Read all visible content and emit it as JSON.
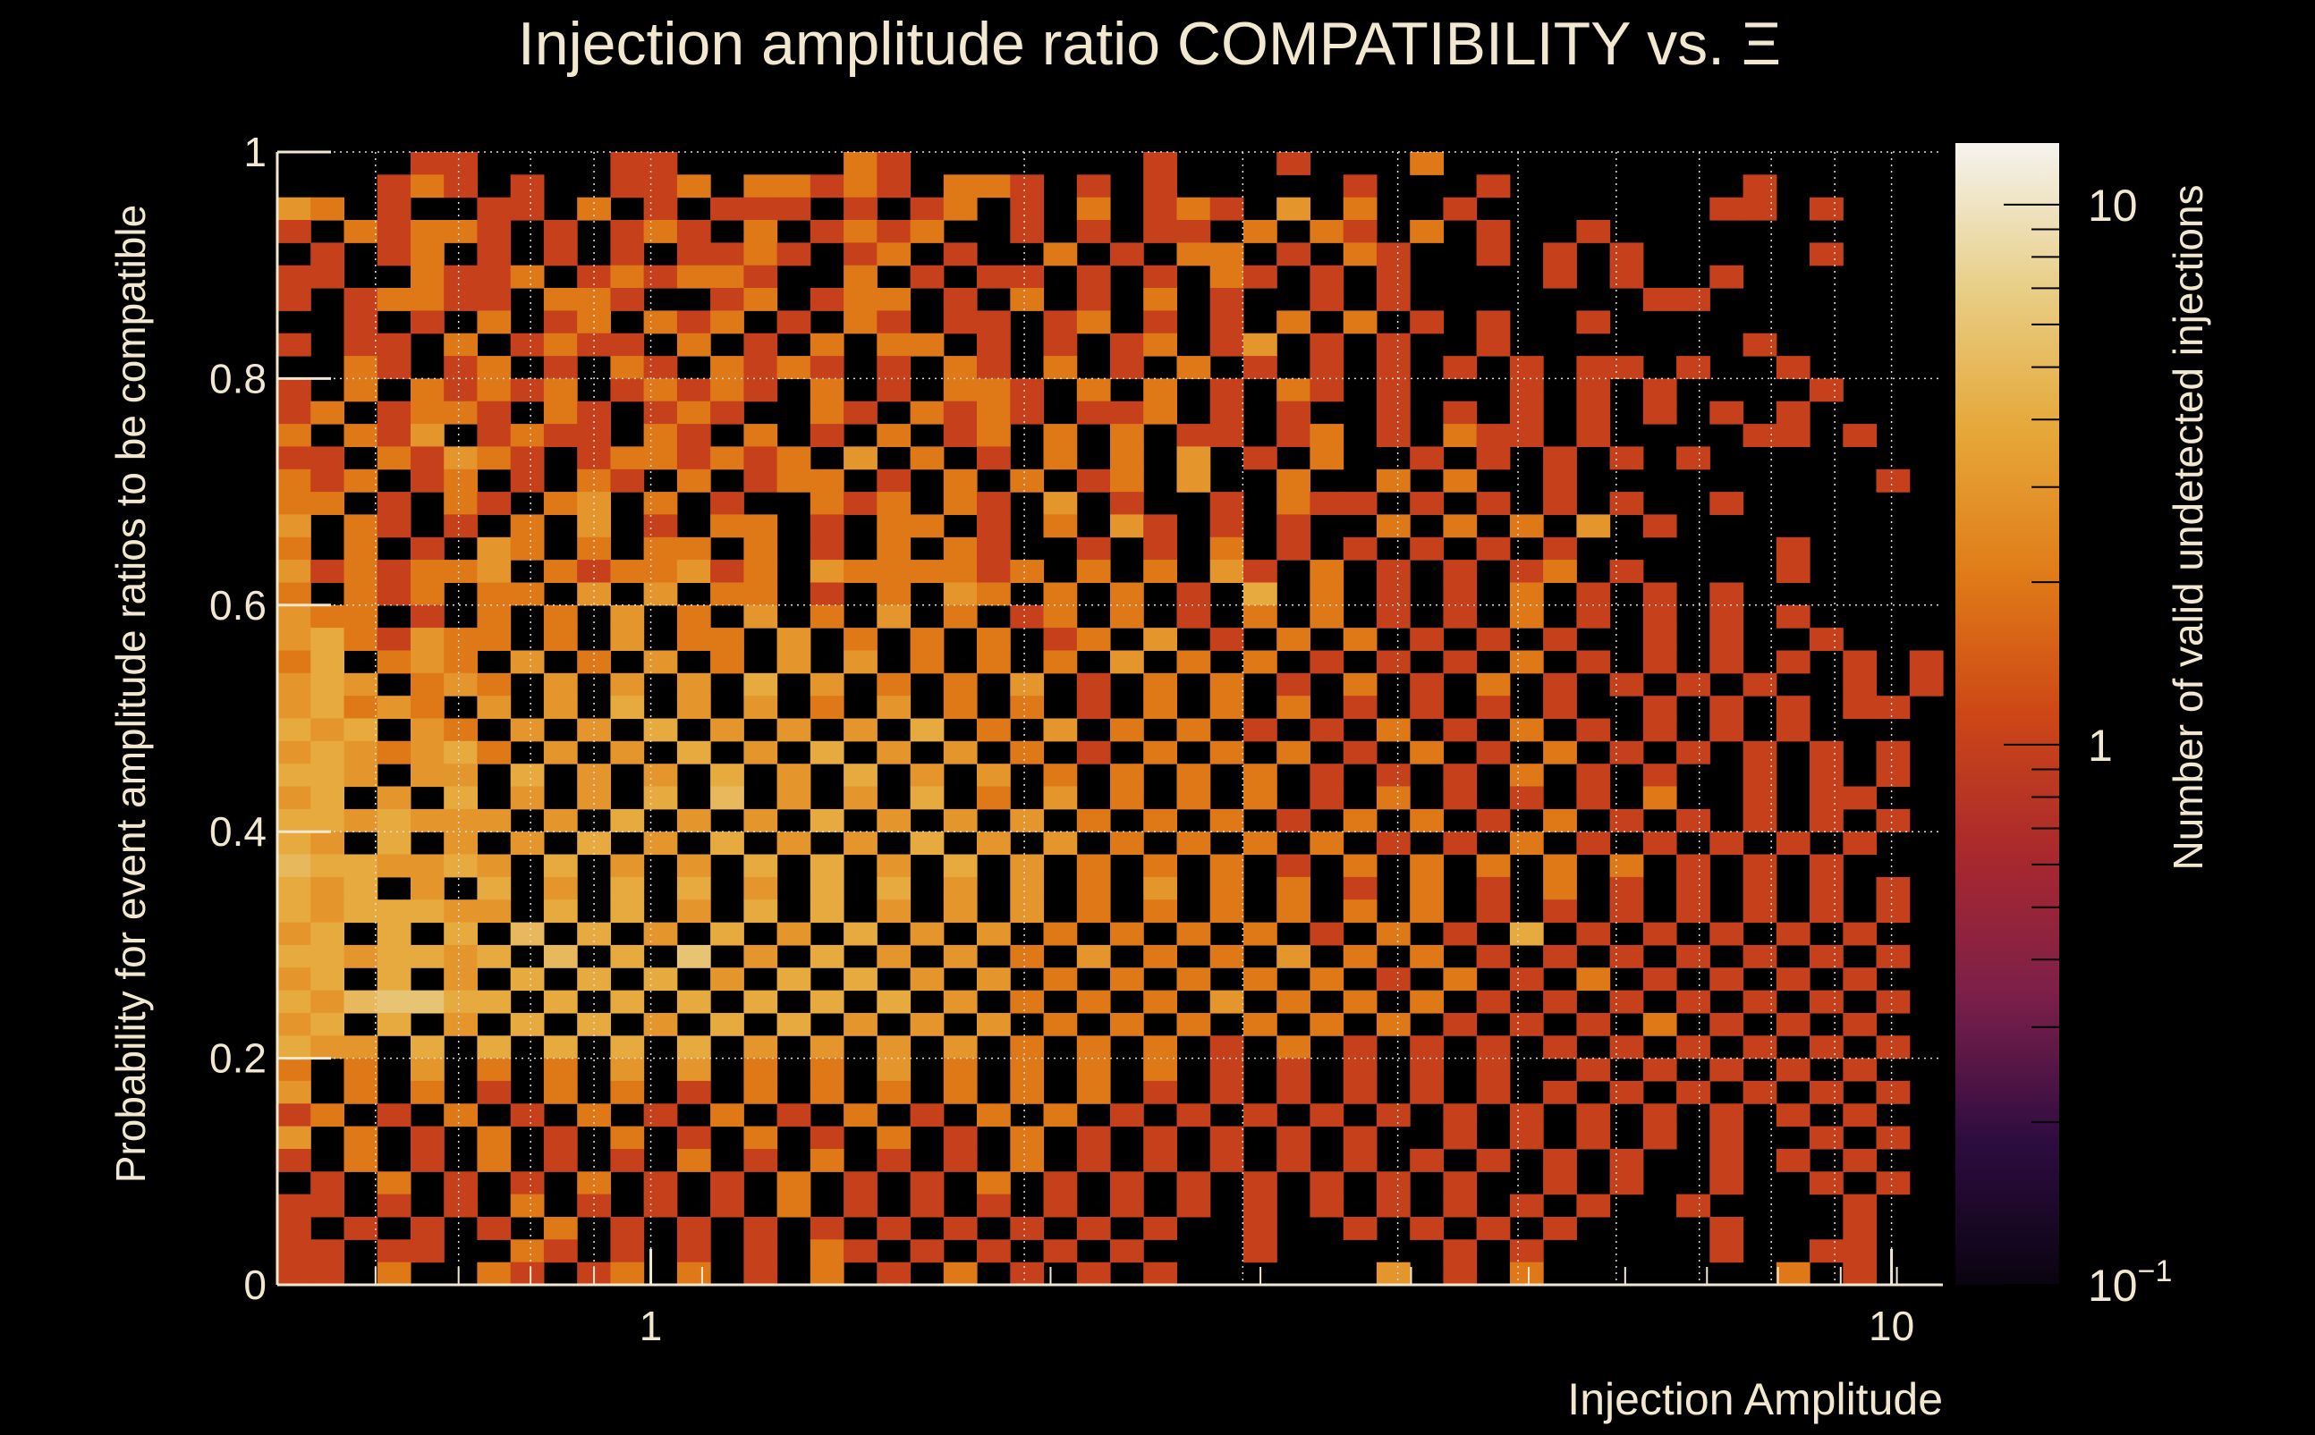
{
  "chart_data": {
    "type": "heatmap",
    "title": "Injection amplitude ratio COMPATIBILITY vs.  Ξ",
    "xlabel": "Injection Amplitude",
    "ylabel": "Probability for event amplitude ratios to be compatible",
    "zlabel": "Number of valid undetected injections",
    "x_scale": "log",
    "xlim": [
      0.5,
      11
    ],
    "ylim": [
      0,
      1
    ],
    "zlim": [
      0.1,
      13
    ],
    "z_scale": "log",
    "x_bins": 50,
    "y_bins": 50,
    "x_ticks": [
      {
        "value": 1,
        "label": "1"
      },
      {
        "value": 10,
        "label": "10"
      }
    ],
    "y_ticks": [
      {
        "value": 0,
        "label": "0"
      },
      {
        "value": 0.2,
        "label": "0.2"
      },
      {
        "value": 0.4,
        "label": "0.4"
      },
      {
        "value": 0.6,
        "label": "0.6"
      },
      {
        "value": 0.8,
        "label": "0.8"
      },
      {
        "value": 1,
        "label": "1"
      }
    ],
    "z_ticks": [
      {
        "value": 10,
        "label": "10"
      },
      {
        "value": 1,
        "label": "1"
      },
      {
        "value": 0.1,
        "label": "10",
        "sup": "−1"
      }
    ],
    "grid": true,
    "rows_top_to_bottom_counts": [
      "....11....11.....21.......1...1...2...............",
      "...121.1..112.22121.221.1.1.....1...1.......1.....",
      "32.1..11.2.1.111.1.12.1.2.121.3.2..1.......11.1...",
      "1.21221.1.121.2.1212..1.1.11.2.21.2.1..1..........",
      ".1.12.1.1.1.1121.12.1..2.1.22.1.21..1.1.1.....1...",
      "11..2112.121221..2.1.11.1.1.21.1.1....1.1..1......",
      "1.12211.221..12.122.1.2.1.2.1..1.1.......11.......",
      "..1.1.2.12.212.1.21.11.12.1.1.2.2.1.1..1..........",
      "1.11.2.1211.2.1.2.22.1.1.12.13.1.1..1.......1.....",
      "..21.12.1.21.2121.1.21.2.1.2.1.1.1.1.1.11.1..1....",
      "1.2.21212.12121.2.1.221.2.2.1.21.1...1.1.1....1...",
      "12.1221.21.121..21.2121.112.1.1..1.1.1.1.1.1.1....",
      "2.213.1211.21.2.1.2.12.2.2.11.12.1.211.1....11.1..",
      "11.21321.1221212.3.2.1.2.2.3.1.2..1.1.1.1.1.......",
      "212.12.1.21.2.122.1.2.2.12.3..2..2.2..1.........1.",
      "22.1.21.23.2.1..212.21.3.1..1.211.1.1.1.1..1......",
      "3.21.1.2.3.1.22.1.22.1.2.31.1.1..2.2.2.3.1........",
      "2.2.1.32.2.22.2.1.2.21..1.1.2.1.1.1.1.1......1....",
      "3121223.2122312.3222212.2.2.31.2.1.1.12.1....1....",
      "2.212.22.3.3.22.1.2.32.2.2.1.4.2.1.1.2.1.1.1......",
      "322.1.2.2.3.2.3.2.3.2.12.2.1.2.2.1.1.2.1.1.1.1....",
      "3421322.2.3.22.3.2.2.2.12.3.1.2.2.1.1.1..1.1..1...",
      "24.232.3.2.3.2.3.3.2.2.2.3.2.2.1.1.1.2.1.1.1.1.1.1",
      "343.232.3.3.3.4.3.2.2.3.1.2.2.1.2.1.2.1.1.1.1..1.1",
      "34232.3.3.4.3.3.2.3.2.2.1.2.2.2.1.1.1.1..1.1.1.11.",
      "434.32.3.3.4.3.3.3.4.2.3.2.2.1.1.2.1.2.1.1.1.1....",
      "3432342.3.3.4.3.4.3.3.2.1.2.2.2.1.2.1.2.1.1.1.1.1.",
      "443.33.4.3.3.4.3.4.3.3.2.2.2.2.1.1.1.2.1.1..1.1.1.",
      "34.3.4.3.3.4.5.3.3.4.2.3.2.2.2.1.2.1.1.1.2..1.11..",
      "4434333.3.4.3.3.4.3.3.3.2.2.2.1.2.2.1.2.1.1.1.1.1.",
      "43.4.3.3.4.3.4.3.3.4.3.3.2.2.2.2.1.1.2.1.1.1.1.1..",
      "5443343.4.3.3.4.4.3.4.3.2.2.2.1.2.2.2.2.2.1.1.1...",
      "434.3.4.3.4.4.3.4.4.3.3.2.3.2.2.1.2.1.2.1.1.1.1.1.",
      "4344433.4.4.3.4.4.3.3.3.2.2.2.2.2.2.1.1.1.1.1.1.1.",
      "34.4.4.5.4.3.4.3.4.3.3.2.2.2.2.1.2.1.4.1.1.1.1.1..",
      "4434434.5.4.6.3.4.3.3.2.3.2.2.3.2.2.1.1.1.1.1.1.1.",
      "34.4.3.4.4.4.3.4.4.3.3.2.2.2.2.2.1.2.1.2.1.1.1.1..",
      "4356644.4.4.4.4.4.4.3.2.2.2.3.2.2.2.1.1.1.1.1.1.1.",
      "34.4.3.4.4.3.4.4.3.3.3.2.2.2.2.2.2.1.1.1.2.1.1.1..",
      "433.4.4.4.4.4.3.3.3.3.2.2.2.1.2.1.1.1.1.1.1.1.1.1.",
      "2.2.3.2.2.3.3.2.2.3.2.2.2.2.1.1.1.1.1..1.1.1.1.1..",
      "3.2.2.1.2.2.1.2.2.2.2.2.2.1.1.1.1.1.1.1.1.1.1.1.1.",
      "12.1.2.1.2.1.2.1.2.1.2.2.1.1.1.1.1.1.1.1.1.1.1.1..",
      "3.2.1.2.1.2.1.2.1.2.1.2.1.1.1.1.1..1.1.1.1.1..1.1.",
      "1.2.1.2.1.1.2.1.2.1.1.2.1.1.1.1.1.1.1.1.1..1.1.1..",
      ".1.2.1.1.2.1.1.2.1.1.2.1.1.1.1.1.1.1..1.1..1..1.1.",
      "11.1.1.2.1.1.1.2.1.1.1.1.1.1.1.1.1.1.1.1..1....1..",
      "1.1.1.1.2.1.1.1.1.1.1.1.1.1..1..1.1.1.1....1...1..",
      "11.11..21.1.1.1.21.1.1.1.1...1.....1.1.....1..11..",
      "11.2..21.12.2.1.2.1.2.1.1.1......3.1.2.......2.1.."
    ],
    "colormap": [
      "#0a0410",
      "#2d0c40",
      "#7a1f4a",
      "#a8282e",
      "#cd4716",
      "#e07d18",
      "#e6a83a",
      "#e8cf88",
      "#f5f3ef"
    ],
    "text_color": "#f2e8cf"
  }
}
